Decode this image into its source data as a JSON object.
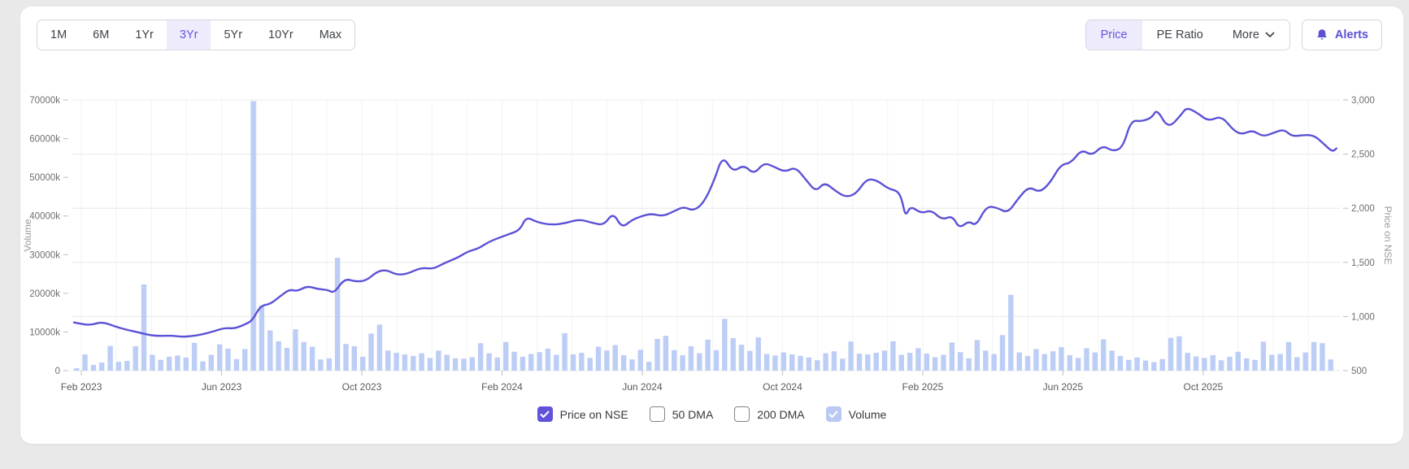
{
  "toolbar": {
    "ranges": [
      {
        "label": "1M",
        "active": false
      },
      {
        "label": "6M",
        "active": false
      },
      {
        "label": "1Yr",
        "active": false
      },
      {
        "label": "3Yr",
        "active": true
      },
      {
        "label": "5Yr",
        "active": false
      },
      {
        "label": "10Yr",
        "active": false
      },
      {
        "label": "Max",
        "active": false
      }
    ],
    "metrics": [
      {
        "label": "Price",
        "active": true
      },
      {
        "label": "PE Ratio",
        "active": false
      },
      {
        "label": "More",
        "active": false,
        "has_dropdown": true
      }
    ],
    "alerts_label": "Alerts"
  },
  "legend": {
    "items": [
      {
        "label": "Price on NSE",
        "checked": true,
        "box_color": "#6152d9"
      },
      {
        "label": "50 DMA",
        "checked": false,
        "box_color": ""
      },
      {
        "label": "200 DMA",
        "checked": false,
        "box_color": ""
      },
      {
        "label": "Volume",
        "checked": true,
        "box_color": "#b9c9f4"
      }
    ]
  },
  "colors": {
    "accent": "#6356e0",
    "price_line": "#5b51d6",
    "volume_bar": "#bccdf6",
    "grid_h": "#e8e8e8",
    "grid_v": "#f3f3f3",
    "axis_text": "#6e6e6e",
    "axis_title": "#9a9aa2",
    "tick_mark": "#bdbdbd"
  },
  "chart_data": {
    "type": "mixed",
    "title": "",
    "x_axis": {
      "unit": "months_since_jan_2023",
      "range": [
        0.72,
        36.9
      ],
      "ticks": [
        {
          "m": 1,
          "label": "Feb 2023"
        },
        {
          "m": 5,
          "label": "Jun 2023"
        },
        {
          "m": 9,
          "label": "Oct 2023"
        },
        {
          "m": 13,
          "label": "Feb 2024"
        },
        {
          "m": 17,
          "label": "Jun 2024"
        },
        {
          "m": 21,
          "label": "Oct 2024"
        },
        {
          "m": 25,
          "label": "Feb 2025"
        },
        {
          "m": 29,
          "label": "Jun 2025"
        },
        {
          "m": 33,
          "label": "Oct 2025"
        }
      ]
    },
    "left_axis": {
      "title": "Volume",
      "range": [
        0,
        70000
      ],
      "ticks": [
        {
          "v": 0,
          "label": "0"
        },
        {
          "v": 10000,
          "label": "10000k"
        },
        {
          "v": 20000,
          "label": "20000k"
        },
        {
          "v": 30000,
          "label": "30000k"
        },
        {
          "v": 40000,
          "label": "40000k"
        },
        {
          "v": 50000,
          "label": "50000k"
        },
        {
          "v": 60000,
          "label": "60000k"
        },
        {
          "v": 70000,
          "label": "70000k"
        }
      ]
    },
    "right_axis": {
      "title": "Price on NSE",
      "range": [
        500,
        3000
      ],
      "ticks": [
        {
          "v": 500,
          "label": "500"
        },
        {
          "v": 1000,
          "label": "1,000"
        },
        {
          "v": 1500,
          "label": "1,500"
        },
        {
          "v": 2000,
          "label": "2,000"
        },
        {
          "v": 2500,
          "label": "2,500"
        },
        {
          "v": 3000,
          "label": "3,000"
        }
      ]
    },
    "grid": {
      "horizontal": "right_axis_ticks",
      "vertical": "monthly"
    },
    "series": [
      {
        "name": "Volume",
        "type": "bar",
        "axis": "left",
        "color": "#bccdf6",
        "x_start": 0.79,
        "x_step": 0.2401,
        "values": [
          600,
          4200,
          1500,
          2100,
          6400,
          2300,
          2500,
          6300,
          22300,
          4100,
          2800,
          3600,
          3900,
          3400,
          7200,
          2400,
          4100,
          6800,
          5700,
          3000,
          5600,
          69700,
          16900,
          10400,
          7600,
          5900,
          10700,
          7400,
          6200,
          2900,
          3200,
          29200,
          6900,
          6300,
          3600,
          9600,
          11900,
          5200,
          4600,
          4200,
          3800,
          4500,
          3300,
          5200,
          4100,
          3200,
          3100,
          3500,
          7100,
          4500,
          3400,
          7400,
          4900,
          3600,
          4300,
          4800,
          5700,
          4100,
          9700,
          4200,
          4600,
          3300,
          6200,
          5200,
          6600,
          4000,
          2900,
          5400,
          2300,
          8200,
          9000,
          5300,
          4000,
          6300,
          4500,
          8000,
          5300,
          13400,
          8400,
          6700,
          5100,
          8600,
          4300,
          3900,
          4700,
          4200,
          3800,
          3400,
          2700,
          4500,
          5000,
          3100,
          7500,
          4400,
          4200,
          4600,
          5200,
          7600,
          4100,
          4600,
          5800,
          4400,
          3500,
          4100,
          7300,
          4800,
          3200,
          7900,
          5200,
          4300,
          9200,
          19600,
          4700,
          3800,
          5600,
          4300,
          5000,
          6100,
          4000,
          3300,
          5800,
          4700,
          8100,
          5200,
          3800,
          2800,
          3400,
          2600,
          2200,
          3000,
          8500,
          8900,
          4600,
          3700,
          3300,
          4000,
          2700,
          3600,
          4900,
          3200,
          2800,
          7500,
          4100,
          4300,
          7400,
          3500,
          4700,
          7400,
          7100,
          2900
        ]
      },
      {
        "name": "Price on NSE",
        "type": "line",
        "axis": "right",
        "color": "#5b51d6",
        "points": [
          [
            0.79,
            945
          ],
          [
            1.0,
            930
          ],
          [
            1.3,
            922
          ],
          [
            1.58,
            952
          ],
          [
            1.99,
            905
          ],
          [
            2.29,
            878
          ],
          [
            2.69,
            848
          ],
          [
            2.97,
            826
          ],
          [
            3.27,
            820
          ],
          [
            3.57,
            824
          ],
          [
            3.84,
            812
          ],
          [
            4.14,
            818
          ],
          [
            4.44,
            834
          ],
          [
            4.79,
            864
          ],
          [
            5.09,
            896
          ],
          [
            5.37,
            888
          ],
          [
            5.69,
            930
          ],
          [
            5.88,
            965
          ],
          [
            6.11,
            1100
          ],
          [
            6.39,
            1115
          ],
          [
            6.66,
            1185
          ],
          [
            6.94,
            1252
          ],
          [
            7.15,
            1232
          ],
          [
            7.45,
            1283
          ],
          [
            7.75,
            1252
          ],
          [
            8.03,
            1246
          ],
          [
            8.21,
            1215
          ],
          [
            8.51,
            1352
          ],
          [
            8.81,
            1322
          ],
          [
            9.12,
            1330
          ],
          [
            9.42,
            1412
          ],
          [
            9.69,
            1433
          ],
          [
            9.99,
            1386
          ],
          [
            10.29,
            1392
          ],
          [
            10.69,
            1453
          ],
          [
            11.03,
            1438
          ],
          [
            11.34,
            1492
          ],
          [
            11.73,
            1542
          ],
          [
            12.03,
            1602
          ],
          [
            12.33,
            1628
          ],
          [
            12.61,
            1688
          ],
          [
            12.91,
            1726
          ],
          [
            13.21,
            1762
          ],
          [
            13.51,
            1798
          ],
          [
            13.69,
            1922
          ],
          [
            13.99,
            1872
          ],
          [
            14.39,
            1846
          ],
          [
            14.8,
            1860
          ],
          [
            15.2,
            1900
          ],
          [
            15.61,
            1862
          ],
          [
            15.91,
            1844
          ],
          [
            16.17,
            1962
          ],
          [
            16.42,
            1816
          ],
          [
            16.7,
            1892
          ],
          [
            17.0,
            1930
          ],
          [
            17.28,
            1950
          ],
          [
            17.58,
            1926
          ],
          [
            17.88,
            1968
          ],
          [
            18.18,
            2016
          ],
          [
            18.46,
            1974
          ],
          [
            18.76,
            2052
          ],
          [
            19.06,
            2262
          ],
          [
            19.29,
            2488
          ],
          [
            19.59,
            2332
          ],
          [
            19.89,
            2402
          ],
          [
            20.19,
            2312
          ],
          [
            20.47,
            2422
          ],
          [
            20.77,
            2382
          ],
          [
            21.07,
            2334
          ],
          [
            21.37,
            2382
          ],
          [
            21.67,
            2262
          ],
          [
            21.95,
            2152
          ],
          [
            22.2,
            2242
          ],
          [
            22.5,
            2162
          ],
          [
            22.8,
            2102
          ],
          [
            23.1,
            2132
          ],
          [
            23.4,
            2272
          ],
          [
            23.7,
            2258
          ],
          [
            24.01,
            2182
          ],
          [
            24.31,
            2156
          ],
          [
            24.42,
            2060
          ],
          [
            24.51,
            1922
          ],
          [
            24.65,
            2022
          ],
          [
            24.95,
            1952
          ],
          [
            25.25,
            1984
          ],
          [
            25.55,
            1892
          ],
          [
            25.85,
            1932
          ],
          [
            26.04,
            1812
          ],
          [
            26.32,
            1884
          ],
          [
            26.52,
            1834
          ],
          [
            26.82,
            2022
          ],
          [
            27.13,
            2004
          ],
          [
            27.43,
            1954
          ],
          [
            27.73,
            2092
          ],
          [
            28.03,
            2202
          ],
          [
            28.33,
            2144
          ],
          [
            28.63,
            2232
          ],
          [
            28.93,
            2402
          ],
          [
            29.23,
            2418
          ],
          [
            29.53,
            2544
          ],
          [
            29.83,
            2484
          ],
          [
            30.13,
            2582
          ],
          [
            30.43,
            2524
          ],
          [
            30.71,
            2562
          ],
          [
            30.94,
            2812
          ],
          [
            31.24,
            2802
          ],
          [
            31.54,
            2836
          ],
          [
            31.68,
            2920
          ],
          [
            32.0,
            2732
          ],
          [
            32.37,
            2862
          ],
          [
            32.53,
            2932
          ],
          [
            32.83,
            2882
          ],
          [
            33.15,
            2802
          ],
          [
            33.52,
            2856
          ],
          [
            33.87,
            2716
          ],
          [
            34.12,
            2682
          ],
          [
            34.4,
            2722
          ],
          [
            34.7,
            2662
          ],
          [
            34.98,
            2692
          ],
          [
            35.3,
            2732
          ],
          [
            35.53,
            2662
          ],
          [
            35.88,
            2678
          ],
          [
            36.18,
            2672
          ],
          [
            36.48,
            2582
          ],
          [
            36.69,
            2522
          ],
          [
            36.8,
            2552
          ]
        ]
      }
    ]
  }
}
